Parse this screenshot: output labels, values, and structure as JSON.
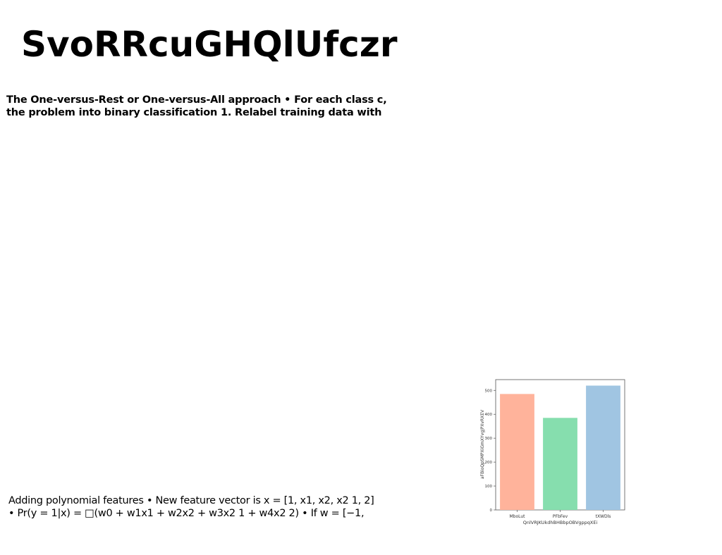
{
  "title": "SvoRRcuGHQlUfczr",
  "subtitle": "The One-versus-Rest or One-versus-All approach • For each class c, the problem into binary classification 1. Relabel training data with",
  "body_text": "Adding polynomial features • New feature vector is x = [1, x1, x2, x2 1, 2] • Pr(y = 1|x) = □(w0 + w1x1 + w2x2 + w3x2 1 + w4x2 2) • If w = [−1,",
  "chart_data": {
    "type": "bar",
    "title": "",
    "xlabel": "QnlVRJKUkdhBHBbpOBVgppqXEi",
    "ylabel": "aFBioQpSMPXiGmXYvgJPXvRXEV",
    "categories": [
      "MboLut",
      "PFbFev",
      "tXWDls"
    ],
    "values": [
      485,
      385,
      520
    ],
    "colors": [
      "#ffb39b",
      "#86deae",
      "#a0c5e2"
    ],
    "ylim": [
      0,
      545
    ],
    "yticks": [
      0,
      100,
      200,
      300,
      400,
      500
    ],
    "grid": false
  }
}
